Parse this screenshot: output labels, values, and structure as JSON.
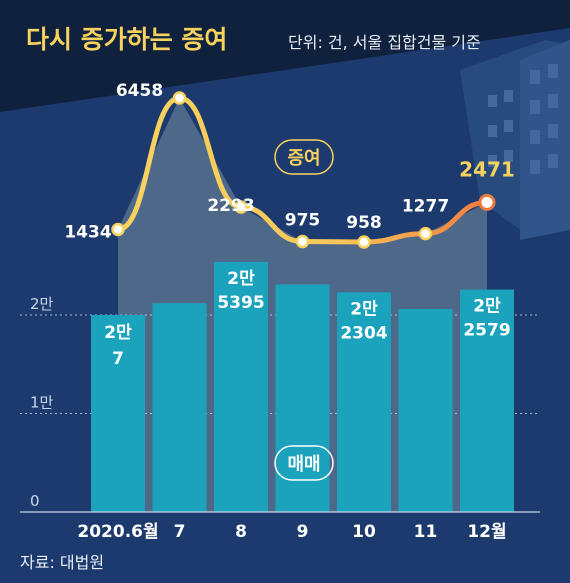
{
  "header": {
    "title": "다시 증가하는 증여",
    "unit_note": "단위: 건, 서울 집합건물 기준"
  },
  "source": "자료: 대법원",
  "chart_data": {
    "type": "bar+line",
    "categories": [
      "2020.6월",
      "7",
      "8",
      "9",
      "10",
      "11",
      "12월"
    ],
    "y_ticks": [
      {
        "value": 0,
        "label": "0"
      },
      {
        "value": 10000,
        "label": "1만"
      },
      {
        "value": 20000,
        "label": "2만"
      }
    ],
    "ylim": [
      0,
      29000
    ],
    "bar_series": {
      "name": "매매",
      "values": [
        20007,
        21200,
        25395,
        23100,
        22304,
        20600,
        22579
      ],
      "data_labels": [
        [
          "2만",
          "7"
        ],
        null,
        [
          "2만",
          "5395"
        ],
        null,
        [
          "2만",
          "2304"
        ],
        null,
        [
          "2만",
          "2579"
        ]
      ]
    },
    "line_series": {
      "name": "증여",
      "values": [
        1434,
        6458,
        2293,
        975,
        958,
        1277,
        2471
      ],
      "data_labels": [
        "1434",
        "6458",
        "2293",
        "975",
        "958",
        "1277",
        "2471"
      ]
    },
    "grid": true,
    "colors": {
      "background": "#1d3a6e",
      "bar": "#1ba3bd",
      "line": "#f7d35e",
      "line_end": "#f07a3e",
      "highlight": "#f7d35e",
      "title_box": "#0f213d"
    }
  }
}
